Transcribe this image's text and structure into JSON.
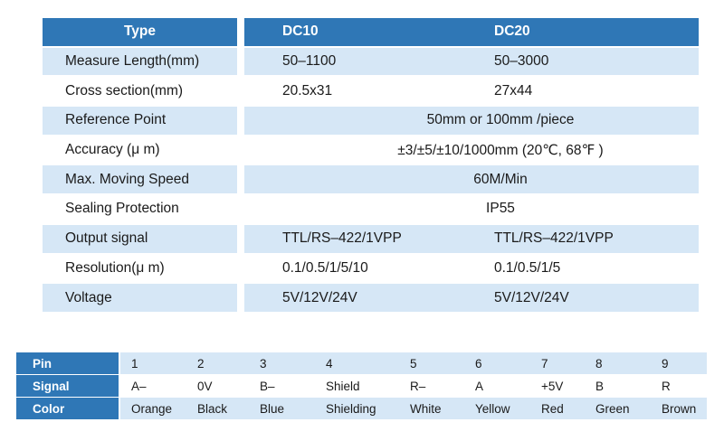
{
  "spec_table": {
    "header": {
      "type": "Type",
      "dc10": "DC10",
      "dc20": "DC20"
    },
    "rows": [
      {
        "label": "Measure Length(mm)",
        "dc10": "50–1100",
        "dc20": "50–3000"
      },
      {
        "label": "Cross section(mm)",
        "dc10": "20.5x31",
        "dc20": "27x44"
      },
      {
        "label": "Reference Point",
        "merged": "50mm or 100mm /piece"
      },
      {
        "label": "Accuracy (μ m)",
        "merged": "±3/±5/±10/1000mm (20℃, 68℉ )"
      },
      {
        "label": "Max. Moving Speed",
        "merged": "60M/Min"
      },
      {
        "label": "Sealing Protection",
        "merged": "IP55"
      },
      {
        "label": "Output signal",
        "dc10": "TTL/RS–422/1VPP",
        "dc20": "TTL/RS–422/1VPP"
      },
      {
        "label": "Resolution(μ m)",
        "dc10": "0.1/0.5/1/5/10",
        "dc20": "0.1/0.5/1/5"
      },
      {
        "label": "Voltage",
        "dc10": "5V/12V/24V",
        "dc20": "5V/12V/24V"
      }
    ]
  },
  "pin_table": {
    "labels": {
      "pin": "Pin",
      "signal": "Signal",
      "color": "Color"
    },
    "pins": [
      "1",
      "2",
      "3",
      "4",
      "5",
      "6",
      "7",
      "8",
      "9"
    ],
    "signals": [
      "A–",
      "0V",
      "B–",
      "Shield",
      "R–",
      "A",
      "+5V",
      "B",
      "R"
    ],
    "colors": [
      "Orange",
      "Black",
      "Blue",
      "Shielding",
      "White",
      "Yellow",
      "Red",
      "Green",
      "Brown"
    ]
  }
}
